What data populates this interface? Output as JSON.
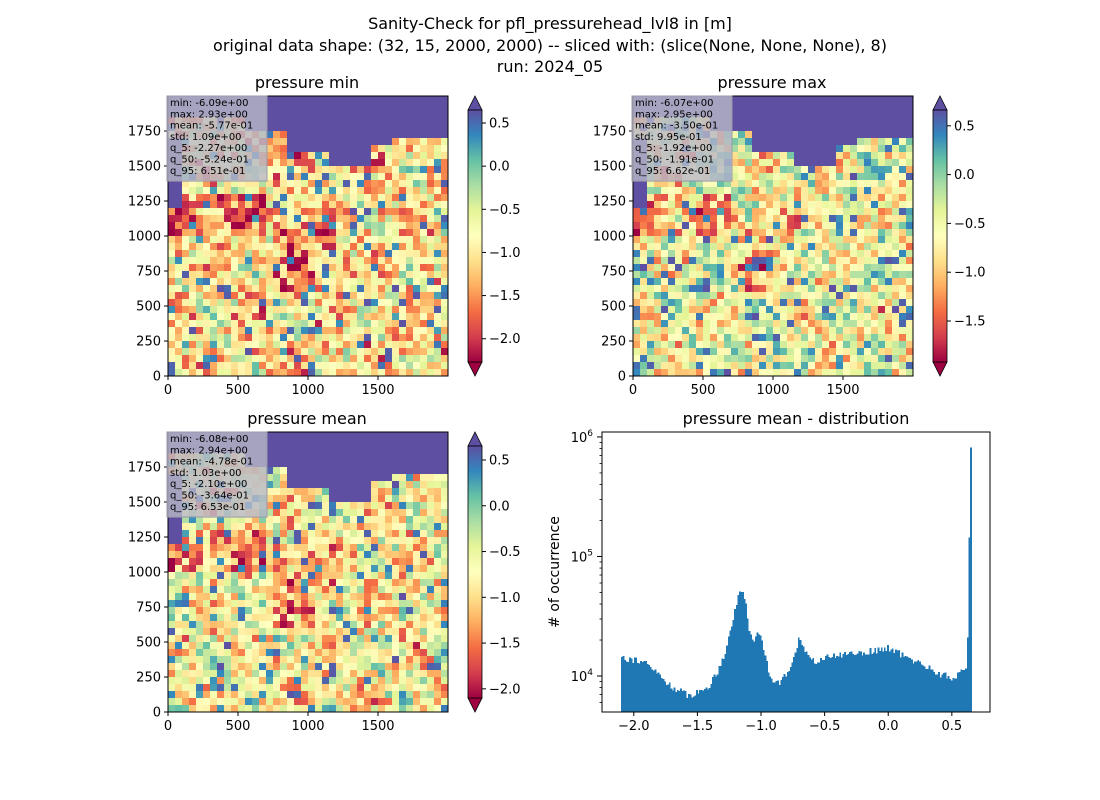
{
  "figure": {
    "suptitle_lines": [
      "Sanity-Check for pfl_pressurehead_lvl8 in [m]",
      "original data shape: (32, 15, 2000, 2000) -- sliced with: (slice(None, None, None), 8)",
      "run: 2024_05"
    ]
  },
  "chart_data": [
    {
      "type": "heatmap",
      "title": "pressure min",
      "xlabel": "",
      "ylabel": "",
      "xlim": [
        0,
        2000
      ],
      "ylim": [
        0,
        2000
      ],
      "xticks": [
        0,
        500,
        1000,
        1500
      ],
      "yticks": [
        0,
        250,
        500,
        750,
        1000,
        1250,
        1500,
        1750
      ],
      "colormap": "Spectral",
      "colorbar": {
        "vmin": -2.27,
        "vmax": 0.651,
        "ticks": [
          0.5,
          0.0,
          -0.5,
          -1.0,
          -1.5,
          -2.0
        ],
        "extend": "both"
      },
      "stats_lines": [
        "min: -6.09e+00",
        "max: 2.93e+00",
        "mean: -5.77e-01",
        "std: 1.09e+00",
        "q_5: -2.27e+00",
        "q_50: -5.24e-01",
        "q_95: 6.51e-01"
      ],
      "legend_placement": "top-left"
    },
    {
      "type": "heatmap",
      "title": "pressure max",
      "xlabel": "",
      "ylabel": "",
      "xlim": [
        0,
        2000
      ],
      "ylim": [
        0,
        2000
      ],
      "xticks": [
        0,
        500,
        1000,
        1500
      ],
      "yticks": [
        0,
        250,
        500,
        750,
        1000,
        1250,
        1500,
        1750
      ],
      "colormap": "Spectral",
      "colorbar": {
        "vmin": -1.92,
        "vmax": 0.662,
        "ticks": [
          0.5,
          0.0,
          -0.5,
          -1.0,
          -1.5
        ],
        "extend": "both"
      },
      "stats_lines": [
        "min: -6.07e+00",
        "max: 2.95e+00",
        "mean: -3.50e-01",
        "std: 9.95e-01",
        "q_5: -1.92e+00",
        "q_50: -1.91e-01",
        "q_95: 6.62e-01"
      ],
      "legend_placement": "top-left"
    },
    {
      "type": "heatmap",
      "title": "pressure mean",
      "xlabel": "",
      "ylabel": "",
      "xlim": [
        0,
        2000
      ],
      "ylim": [
        0,
        2000
      ],
      "xticks": [
        0,
        500,
        1000,
        1500
      ],
      "yticks": [
        0,
        250,
        500,
        750,
        1000,
        1250,
        1500,
        1750
      ],
      "colormap": "Spectral",
      "colorbar": {
        "vmin": -2.1,
        "vmax": 0.653,
        "ticks": [
          0.5,
          0.0,
          -0.5,
          -1.0,
          -1.5,
          -2.0
        ],
        "extend": "both"
      },
      "stats_lines": [
        "min: -6.08e+00",
        "max: 2.94e+00",
        "mean: -4.78e-01",
        "std: 1.03e+00",
        "q_5: -2.10e+00",
        "q_50: -3.64e-01",
        "q_95: 6.53e-01"
      ],
      "legend_placement": "top-left"
    },
    {
      "type": "bar",
      "title": "pressure mean - distribution",
      "xlabel": "",
      "ylabel": "# of occurrence",
      "xlim": [
        -2.25,
        0.8
      ],
      "ylim": [
        5000,
        1100000
      ],
      "yscale": "log",
      "xticks": [
        -2.0,
        -1.5,
        -1.0,
        -0.5,
        0.0,
        0.5
      ],
      "xtick_labels": [
        "−2.0",
        "−1.5",
        "−1.0",
        "−0.5",
        "0.0",
        "0.5"
      ],
      "yticks": [
        10000,
        100000,
        1000000
      ],
      "ytick_labels": [
        [
          "10",
          "4"
        ],
        [
          "10",
          "5"
        ],
        [
          "10",
          "6"
        ]
      ],
      "bar_color": "#1f77b4",
      "profile_points": [
        [
          -2.1,
          15000
        ],
        [
          -2.05,
          14000
        ],
        [
          -1.95,
          13500
        ],
        [
          -1.85,
          11500
        ],
        [
          -1.75,
          9000
        ],
        [
          -1.65,
          7500
        ],
        [
          -1.58,
          7000
        ],
        [
          -1.5,
          7200
        ],
        [
          -1.42,
          8000
        ],
        [
          -1.35,
          10500
        ],
        [
          -1.28,
          16000
        ],
        [
          -1.22,
          30000
        ],
        [
          -1.17,
          50000
        ],
        [
          -1.14,
          52000
        ],
        [
          -1.12,
          42000
        ],
        [
          -1.09,
          24000
        ],
        [
          -1.06,
          18000
        ],
        [
          -1.03,
          24000
        ],
        [
          -0.99,
          20000
        ],
        [
          -0.95,
          12000
        ],
        [
          -0.9,
          9000
        ],
        [
          -0.84,
          9000
        ],
        [
          -0.78,
          11000
        ],
        [
          -0.73,
          16000
        ],
        [
          -0.7,
          21000
        ],
        [
          -0.67,
          19000
        ],
        [
          -0.62,
          13500
        ],
        [
          -0.55,
          13500
        ],
        [
          -0.45,
          14500
        ],
        [
          -0.3,
          15500
        ],
        [
          -0.15,
          16000
        ],
        [
          0.0,
          17000
        ],
        [
          0.06,
          16500
        ],
        [
          0.12,
          14500
        ],
        [
          0.2,
          13500
        ],
        [
          0.3,
          12000
        ],
        [
          0.4,
          10500
        ],
        [
          0.45,
          10000
        ],
        [
          0.5,
          9500
        ],
        [
          0.55,
          10500
        ],
        [
          0.6,
          11000
        ],
        [
          0.62,
          13000
        ],
        [
          0.63,
          40000
        ],
        [
          0.645,
          820000
        ],
        [
          0.655,
          5000
        ]
      ]
    }
  ]
}
